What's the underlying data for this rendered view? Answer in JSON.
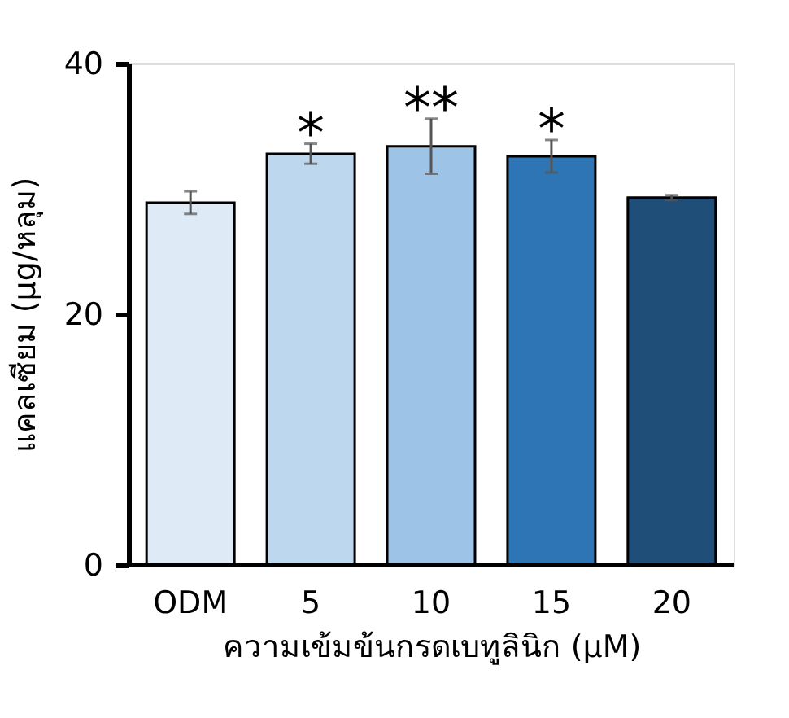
{
  "chart_data": {
    "type": "bar",
    "xlabel": "ความเข้มข้นกรดเบทูลินิก (µM)",
    "ylabel": "แคลเซียม (µg/หลุม)",
    "categories": [
      "ODM",
      "5",
      "10",
      "15",
      "20"
    ],
    "values": [
      28.9,
      32.8,
      33.4,
      32.6,
      29.3
    ],
    "errors": [
      0.9,
      0.8,
      2.2,
      1.3,
      0.2
    ],
    "colors": [
      "#deebf7",
      "#bdd7ee",
      "#9dc3e6",
      "#2e75b6",
      "#1f4e79"
    ],
    "ylim": [
      0,
      40
    ],
    "yticks": [
      0,
      20,
      40
    ],
    "grid": false,
    "annotations": [
      {
        "text": "*",
        "x": "5",
        "y": 33.6
      },
      {
        "text": "**",
        "x": "10",
        "y": 35.6
      },
      {
        "text": "*",
        "x": "15",
        "y": 33.9
      }
    ]
  }
}
